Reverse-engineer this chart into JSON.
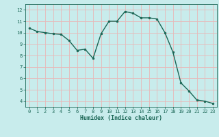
{
  "x": [
    0,
    1,
    2,
    3,
    4,
    5,
    6,
    7,
    8,
    9,
    10,
    11,
    12,
    13,
    14,
    15,
    16,
    17,
    18,
    19,
    20,
    21,
    22,
    23
  ],
  "y": [
    10.4,
    10.1,
    10.0,
    9.9,
    9.85,
    9.3,
    8.45,
    8.55,
    7.75,
    9.9,
    11.0,
    11.0,
    11.85,
    11.7,
    11.3,
    11.3,
    11.2,
    10.0,
    8.3,
    5.6,
    4.9,
    4.1,
    4.0,
    3.8
  ],
  "line_color": "#1a6655",
  "marker": "o",
  "marker_size": 2.0,
  "bg_color": "#c8ecec",
  "grid_color": "#e8b8b8",
  "xlabel": "Humidex (Indice chaleur)",
  "xlabel_color": "#1a6655",
  "tick_color": "#1a6655",
  "ylim": [
    3.5,
    12.5
  ],
  "xlim": [
    -0.5,
    23.5
  ],
  "yticks": [
    4,
    5,
    6,
    7,
    8,
    9,
    10,
    11,
    12
  ],
  "xticks": [
    0,
    1,
    2,
    3,
    4,
    5,
    6,
    7,
    8,
    9,
    10,
    11,
    12,
    13,
    14,
    15,
    16,
    17,
    18,
    19,
    20,
    21,
    22,
    23
  ],
  "tick_fontsize": 5.0,
  "xlabel_fontsize": 6.0,
  "linewidth": 1.0
}
